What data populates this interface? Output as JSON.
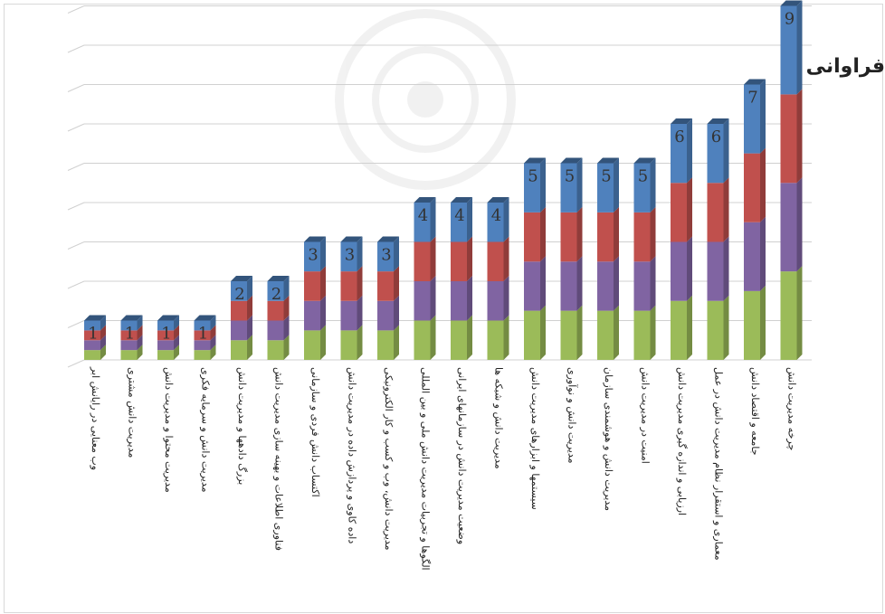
{
  "chart_data": {
    "type": "bar",
    "stacked": true,
    "three_d": true,
    "title": "فراوانی",
    "xlabel": "",
    "ylabel": "",
    "ylim": [
      0,
      9
    ],
    "grid": true,
    "categories": [
      "وب معنایی در رایانش ابر",
      "مدیریت دانش مشتری",
      "مدیریت محتوا و مدیریت دانش",
      "مدیریت دانش و سرمایه فکری",
      "بزرگ دادهها و مدیریت دانش",
      "فناوری اطلاعات و بهینه سازی مدیریت دانش",
      "اکتساب دانش فردی و سازمانی",
      "داده کاوی و پردازش داده در مدیریت دانش",
      "مدیریت دانش، وب و کسب و کار الکترونیکی",
      "الگوها و تجربیات مدیریت دانش ملی و بین المللی",
      "وضعیت مدیریت دانش در سازمانهای ایرانی",
      "مدیریت دانش و شبکه ها",
      "سیستمها و ابزارهای مدیریت دانش",
      "مدیریت دانش و نوآوری",
      "مدیریت دانش و هوشمندی سازمان",
      "امنیت در مدیریت دانش",
      "ارزیابی و اندازه گیری مدیریت دانش",
      "معماری و استقرار نظام مدیریت دانش در عمل",
      "جامعه و اقتصاد دانش",
      "چرخه مدیریت دانش"
    ],
    "values": [
      1,
      1,
      1,
      1,
      2,
      2,
      3,
      3,
      3,
      4,
      4,
      4,
      5,
      5,
      5,
      5,
      6,
      6,
      7,
      9
    ],
    "data_labels": [
      "1",
      "1",
      "1",
      "1",
      "2",
      "2",
      "3",
      "3",
      "3",
      "4",
      "4",
      "4",
      "5",
      "5",
      "5",
      "5",
      "6",
      "6",
      "7",
      "9"
    ],
    "series_colors": [
      "#9bbb59",
      "#8064a2",
      "#c0504d",
      "#4f81bd"
    ]
  }
}
